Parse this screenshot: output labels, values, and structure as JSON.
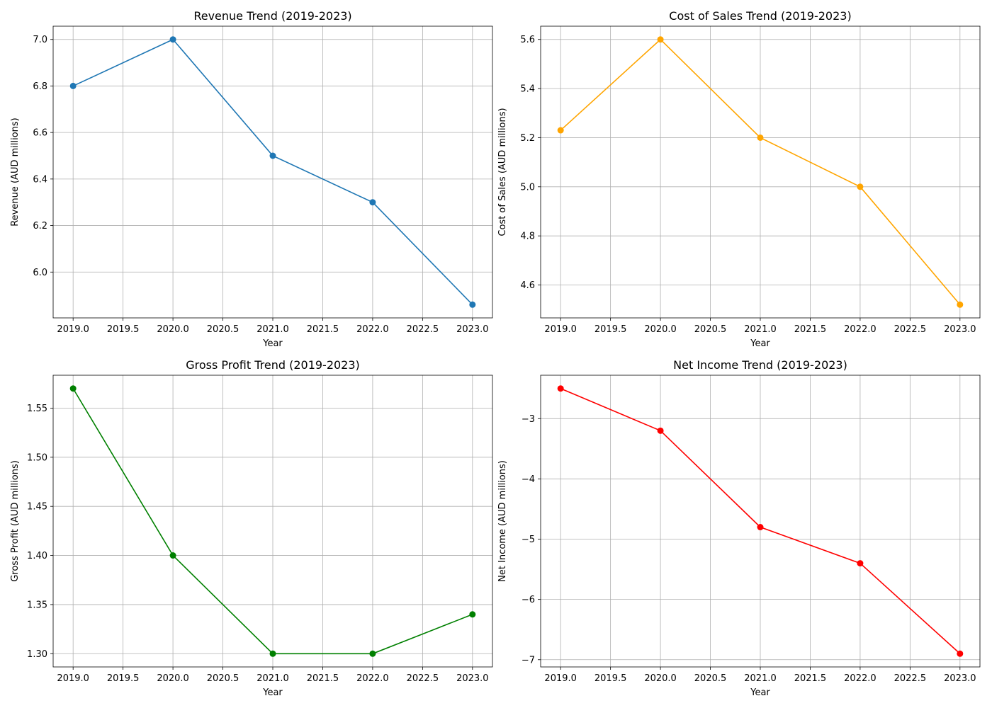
{
  "chart_data": [
    {
      "type": "line",
      "title": "Revenue Trend (2019-2023)",
      "xlabel": "Year",
      "ylabel": "Revenue (AUD millions)",
      "color": "#1f77b4",
      "x": [
        2019,
        2020,
        2021,
        2022,
        2023
      ],
      "y": [
        6.8,
        7.0,
        6.5,
        6.3,
        5.86
      ],
      "xlim": [
        2018.8,
        2023.2
      ],
      "ylim": [
        5.803,
        7.057
      ],
      "xticks": [
        "2019.0",
        "2019.5",
        "2020.0",
        "2020.5",
        "2021.0",
        "2021.5",
        "2022.0",
        "2022.5",
        "2023.0"
      ],
      "yticks": [
        "6.0",
        "6.2",
        "6.4",
        "6.6",
        "6.8",
        "7.0"
      ],
      "grid": true
    },
    {
      "type": "line",
      "title": "Cost of Sales Trend (2019-2023)",
      "xlabel": "Year",
      "ylabel": "Cost of Sales (AUD millions)",
      "color": "#ffa500",
      "x": [
        2019,
        2020,
        2021,
        2022,
        2023
      ],
      "y": [
        5.23,
        5.6,
        5.2,
        5.0,
        4.52
      ],
      "xlim": [
        2018.8,
        2023.2
      ],
      "ylim": [
        4.466,
        5.654
      ],
      "xticks": [
        "2019.0",
        "2019.5",
        "2020.0",
        "2020.5",
        "2021.0",
        "2021.5",
        "2022.0",
        "2022.5",
        "2023.0"
      ],
      "yticks": [
        "4.6",
        "4.8",
        "5.0",
        "5.2",
        "5.4",
        "5.6"
      ],
      "grid": true
    },
    {
      "type": "line",
      "title": "Gross Profit Trend (2019-2023)",
      "xlabel": "Year",
      "ylabel": "Gross Profit (AUD millions)",
      "color": "#008000",
      "x": [
        2019,
        2020,
        2021,
        2022,
        2023
      ],
      "y": [
        1.57,
        1.4,
        1.3,
        1.3,
        1.34
      ],
      "xlim": [
        2018.8,
        2023.2
      ],
      "ylim": [
        1.2865,
        1.5835
      ],
      "xticks": [
        "2019.0",
        "2019.5",
        "2020.0",
        "2020.5",
        "2021.0",
        "2021.5",
        "2022.0",
        "2022.5",
        "2023.0"
      ],
      "yticks": [
        "1.30",
        "1.35",
        "1.40",
        "1.45",
        "1.50",
        "1.55"
      ],
      "grid": true
    },
    {
      "type": "line",
      "title": "Net Income Trend (2019-2023)",
      "xlabel": "Year",
      "ylabel": "Net Income (AUD millions)",
      "color": "#ff0000",
      "x": [
        2019,
        2020,
        2021,
        2022,
        2023
      ],
      "y": [
        -2.5,
        -3.2,
        -4.8,
        -5.4,
        -6.9
      ],
      "xlim": [
        2018.8,
        2023.2
      ],
      "ylim": [
        -7.12,
        -2.28
      ],
      "xticks": [
        "2019.0",
        "2019.5",
        "2020.0",
        "2020.5",
        "2021.0",
        "2021.5",
        "2022.0",
        "2022.5",
        "2023.0"
      ],
      "yticks": [
        "−7",
        "−6",
        "−5",
        "−4",
        "−3"
      ],
      "grid": true
    }
  ]
}
